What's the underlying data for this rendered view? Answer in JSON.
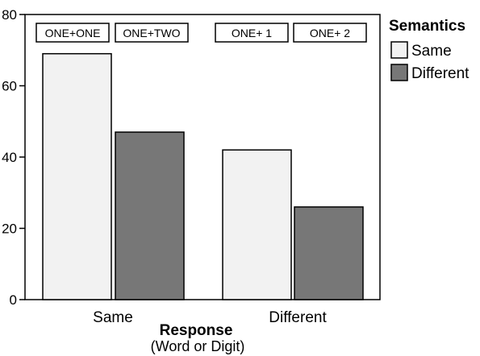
{
  "chart_data": {
    "type": "bar",
    "categories": [
      "Same",
      "Different"
    ],
    "xlabel": "Response",
    "xlabel_sub": "(Word or Digit)",
    "ylabel": "",
    "ylim": [
      0,
      80
    ],
    "yticks": [
      0,
      20,
      40,
      60,
      80
    ],
    "grid": false,
    "legend": {
      "title": "Semantics",
      "placement": "right",
      "entries": [
        "Same",
        "Different"
      ]
    },
    "series": [
      {
        "name": "Same",
        "values": [
          69,
          42
        ],
        "color": "#f2f2f2"
      },
      {
        "name": "Different",
        "values": [
          47,
          26
        ],
        "color": "#777777"
      }
    ],
    "bar_labels": [
      [
        "ONE+ONE",
        "ONE+TWO"
      ],
      [
        "ONE+ 1",
        "ONE+ 2"
      ]
    ]
  }
}
